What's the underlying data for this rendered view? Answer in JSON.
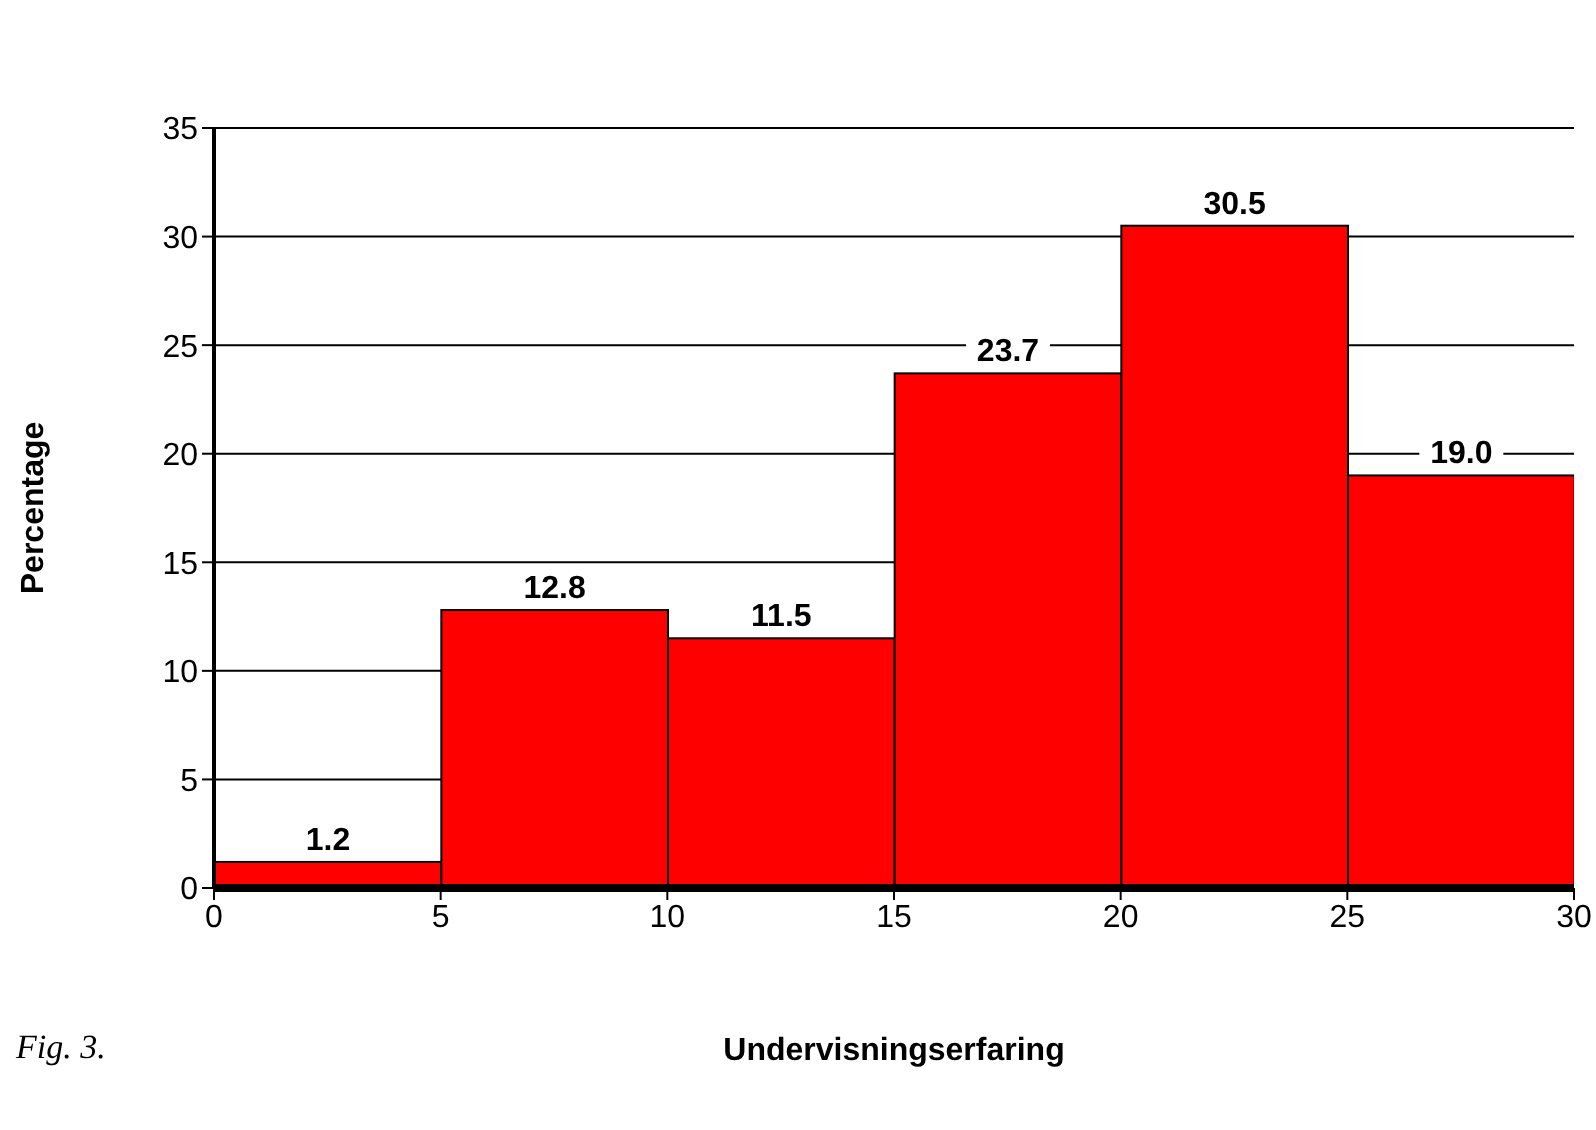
{
  "chart_data": {
    "type": "histogram",
    "xlabel": "Undervisningserfaring",
    "ylabel": "Percentage",
    "annotations": [
      "Fig. 3."
    ],
    "bins": [
      0,
      5,
      10,
      15,
      20,
      25,
      30
    ],
    "values": [
      1.2,
      12.8,
      11.5,
      23.7,
      30.5,
      19.0
    ],
    "value_labels": [
      "1.2",
      "12.8",
      "11.5",
      "23.7",
      "30.5",
      "19.0"
    ],
    "color": "#ff0000",
    "xlim": [
      0,
      30
    ],
    "xticks": [
      0,
      5,
      10,
      15,
      20,
      25,
      30
    ],
    "ylim": [
      0,
      35
    ],
    "yticks": [
      0,
      5,
      10,
      15,
      20,
      25,
      30,
      35
    ],
    "grid": "y"
  }
}
